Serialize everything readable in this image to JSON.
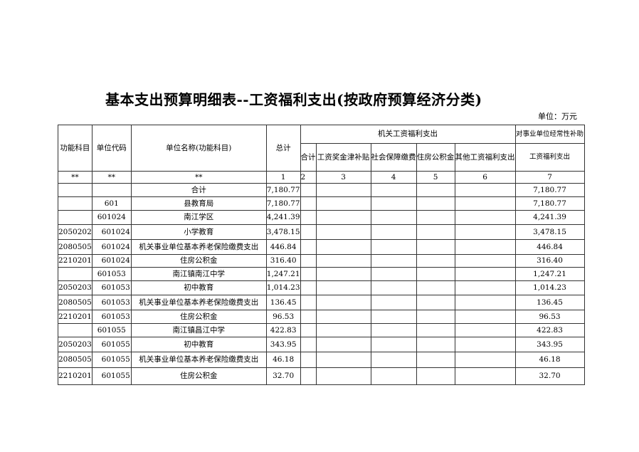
{
  "title": "基本支出预算明细表--工资福利支出(按政府预算经济分类)",
  "unit": "单位：万元",
  "headers": {
    "func": "功能科目",
    "code": "单位代码",
    "name": "单位名称(功能科目)",
    "total": "总计",
    "group1": "机关工资福利支出",
    "group2": "对事业单位经常性补助",
    "sub": [
      "合计",
      "工资奖金津补贴",
      "社会保障缴费",
      "住房公积金",
      "其他工资福利支出"
    ],
    "sub2": "工资福利支出",
    "index": [
      "**",
      "**",
      "**",
      "1",
      "2",
      "3",
      "4",
      "5",
      "6",
      "7"
    ]
  },
  "rows": [
    {
      "func": "",
      "code": "",
      "name": "合计",
      "total": "7,180.77",
      "c7": "7,180.77"
    },
    {
      "func": "",
      "code": "601",
      "name": "县教育局",
      "total": "7,180.77",
      "c7": "7,180.77"
    },
    {
      "func": "",
      "code": "601024",
      "name": "南江学区",
      "total": "4,241.39",
      "c7": "4,241.39"
    },
    {
      "func": "2050202",
      "code": "601024",
      "name": "小学教育",
      "total": "3,478.15",
      "c7": "3,478.15"
    },
    {
      "func": "2080505",
      "code": "601024",
      "name": "机关事业单位基本养老保险缴费支出",
      "total": "446.84",
      "c7": "446.84"
    },
    {
      "func": "2210201",
      "code": "601024",
      "name": "住房公积金",
      "total": "316.40",
      "c7": "316.40"
    },
    {
      "func": "",
      "code": "601053",
      "name": "南江镇南江中学",
      "total": "1,247.21",
      "c7": "1,247.21"
    },
    {
      "func": "2050203",
      "code": "601053",
      "name": "初中教育",
      "total": "1,014.23",
      "c7": "1,014.23"
    },
    {
      "func": "2080505",
      "code": "601053",
      "name": "机关事业单位基本养老保险缴费支出",
      "total": "136.45",
      "c7": "136.45"
    },
    {
      "func": "2210201",
      "code": "601053",
      "name": "住房公积金",
      "total": "96.53",
      "c7": "96.53"
    },
    {
      "func": "",
      "code": "601055",
      "name": "南江镇昌江中学",
      "total": "422.83",
      "c7": "422.83"
    },
    {
      "func": "2050203",
      "code": "601055",
      "name": "初中教育",
      "total": "343.95",
      "c7": "343.95"
    },
    {
      "func": "2080505",
      "code": "601055",
      "name": "机关事业单位基本养老保险缴费支出",
      "total": "46.18",
      "c7": "46.18"
    },
    {
      "func": "2210201",
      "code": "601055",
      "name": "住房公积金",
      "total": "32.70",
      "c7": "32.70"
    }
  ]
}
